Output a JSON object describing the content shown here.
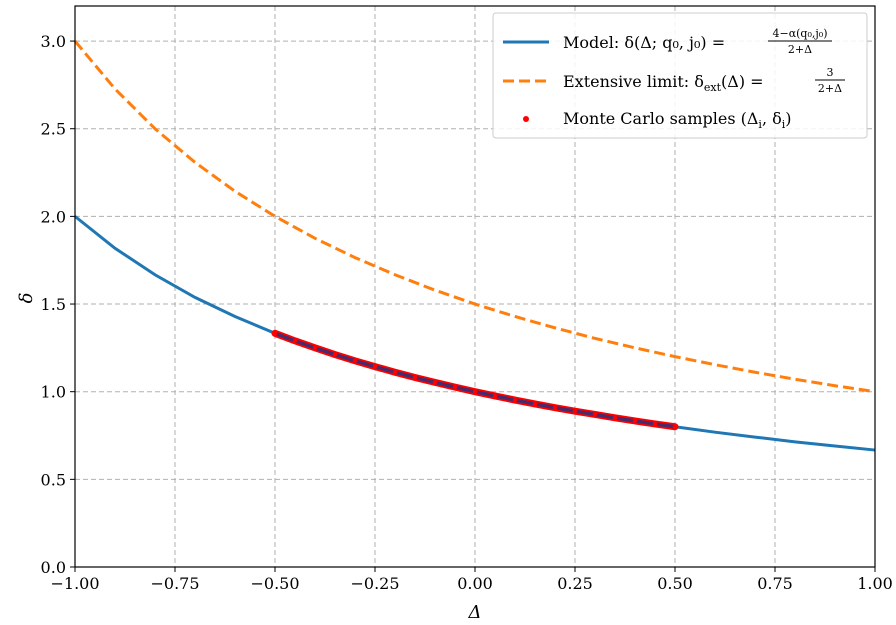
{
  "chart_data": {
    "type": "line",
    "title": "",
    "xlabel": "Δ",
    "ylabel": "δ",
    "xlim": [
      -1.0,
      1.0
    ],
    "ylim": [
      0.0,
      3.2
    ],
    "grid": true,
    "grid_style": "dashed",
    "legend_position": "top-right",
    "x_ticks": [
      -1.0,
      -0.75,
      -0.5,
      -0.25,
      0.0,
      0.25,
      0.5,
      0.75,
      1.0
    ],
    "x_tick_labels": [
      "−1.00",
      "−0.75",
      "−0.50",
      "−0.25",
      "0.00",
      "0.25",
      "0.50",
      "0.75",
      "1.00"
    ],
    "y_ticks": [
      0.0,
      0.5,
      1.0,
      1.5,
      2.0,
      2.5,
      3.0
    ],
    "y_tick_labels": [
      "0.0",
      "0.5",
      "1.0",
      "1.5",
      "2.0",
      "2.5",
      "3.0"
    ],
    "series": [
      {
        "name": "Model: δ(Δ; q₀, j₀) = (4 − α(q₀, j₀)) / (2 + Δ)",
        "style": "solid",
        "color": "#1f77b4",
        "x": [
          -1.0,
          -0.9,
          -0.8,
          -0.7,
          -0.6,
          -0.5,
          -0.4,
          -0.3,
          -0.2,
          -0.1,
          0.0,
          0.1,
          0.2,
          0.3,
          0.4,
          0.5,
          0.6,
          0.7,
          0.8,
          0.9,
          1.0
        ],
        "y": [
          2.0,
          1.818,
          1.667,
          1.538,
          1.429,
          1.333,
          1.25,
          1.176,
          1.111,
          1.053,
          1.0,
          0.952,
          0.909,
          0.87,
          0.833,
          0.8,
          0.769,
          0.741,
          0.714,
          0.69,
          0.667
        ]
      },
      {
        "name": "Extensive limit: δ_ext(Δ) = 3 / (2 + Δ)",
        "style": "dashed",
        "color": "#ff7f0e",
        "x": [
          -1.0,
          -0.9,
          -0.8,
          -0.7,
          -0.6,
          -0.5,
          -0.4,
          -0.3,
          -0.2,
          -0.1,
          0.0,
          0.1,
          0.2,
          0.3,
          0.4,
          0.5,
          0.6,
          0.7,
          0.8,
          0.9,
          1.0
        ],
        "y": [
          3.0,
          2.727,
          2.5,
          2.308,
          2.143,
          2.0,
          1.875,
          1.765,
          1.667,
          1.579,
          1.5,
          1.429,
          1.364,
          1.304,
          1.25,
          1.2,
          1.154,
          1.111,
          1.071,
          1.034,
          1.0
        ]
      },
      {
        "name": "Monte Carlo samples (Δᵢ, δᵢ)",
        "style": "scatter",
        "color": "#ff0000",
        "x": [
          -0.5,
          -0.45,
          -0.4,
          -0.35,
          -0.3,
          -0.25,
          -0.2,
          -0.15,
          -0.1,
          -0.05,
          0.0,
          0.05,
          0.1,
          0.15,
          0.2,
          0.25,
          0.3,
          0.35,
          0.4,
          0.45,
          0.5
        ],
        "y": [
          1.333,
          1.29,
          1.25,
          1.212,
          1.176,
          1.143,
          1.111,
          1.081,
          1.053,
          1.026,
          1.0,
          0.976,
          0.952,
          0.93,
          0.909,
          0.889,
          0.87,
          0.851,
          0.833,
          0.816,
          0.8
        ]
      }
    ],
    "legend": [
      {
        "label_main": "Model: δ(Δ; q₀, j₀) = ",
        "frac_num": "4−α(q₀,j₀)",
        "frac_den": "2+Δ"
      },
      {
        "label_main": "Extensive limit: δ",
        "label_sub": "ext",
        "label_tail": "(Δ) = ",
        "frac_num": "3",
        "frac_den": "2+Δ"
      },
      {
        "label_main": "Monte Carlo samples (Δ",
        "label_sub": "i",
        "label_mid": ", δ",
        "label_sub2": "i",
        "label_tail": ")"
      }
    ]
  }
}
